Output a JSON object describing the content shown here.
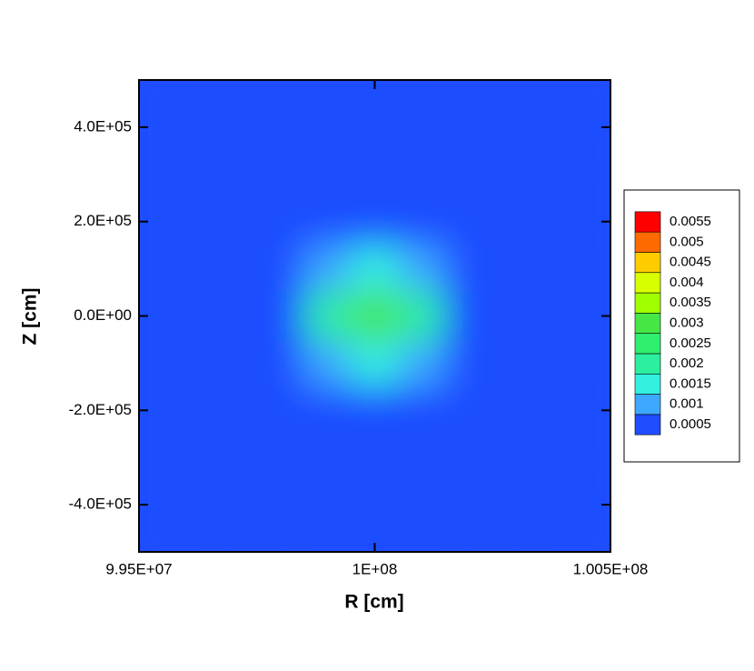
{
  "chart_data": {
    "type": "contour",
    "x_label": "R [cm]",
    "y_label": "Z [cm]",
    "xlim": [
      99500000,
      100500000
    ],
    "ylim": [
      -500000,
      500000
    ],
    "xticks": [
      {
        "value": 99500000,
        "label": "9.95E+07"
      },
      {
        "value": 100000000,
        "label": "1E+08"
      },
      {
        "value": 100500000,
        "label": "1.005E+08"
      }
    ],
    "yticks": [
      {
        "value": -400000,
        "label": "-4.0E+05"
      },
      {
        "value": -200000,
        "label": "-2.0E+05"
      },
      {
        "value": 0,
        "label": "0.0E+00"
      },
      {
        "value": 200000,
        "label": "2.0E+05"
      },
      {
        "value": 400000,
        "label": "4.0E+05"
      }
    ],
    "x": [
      99500000,
      99600000,
      99700000,
      99800000,
      99900000,
      100000000,
      100100000,
      100200000,
      100300000,
      100400000,
      100500000
    ],
    "y": [
      -500000,
      -400000,
      -300000,
      -200000,
      -100000,
      0,
      100000,
      200000,
      300000,
      400000,
      500000
    ],
    "z": [
      [
        0.0002,
        0.0002,
        0.0002,
        0.0002,
        0.0002,
        0.0002,
        0.0002,
        0.0002,
        0.0002,
        0.0002,
        0.0002
      ],
      [
        0.0002,
        0.0002,
        0.0002,
        0.0002,
        0.0002,
        0.0002,
        0.0002,
        0.0002,
        0.0002,
        0.0002,
        0.0002
      ],
      [
        0.0002,
        0.0002,
        0.0002,
        0.0002,
        0.0002,
        0.0002,
        0.0002,
        0.0002,
        0.0002,
        0.0002,
        0.0002
      ],
      [
        0.0002,
        0.0002,
        0.0002,
        0.0002,
        0.0004,
        0.0005,
        0.0004,
        0.0002,
        0.0002,
        0.0002,
        0.0002
      ],
      [
        0.0002,
        0.0002,
        0.0002,
        0.0005,
        0.0013,
        0.0018,
        0.0013,
        0.0005,
        0.0002,
        0.0002,
        0.0002
      ],
      [
        0.0002,
        0.0002,
        0.0003,
        0.0008,
        0.0022,
        0.0032,
        0.0022,
        0.0008,
        0.0003,
        0.0002,
        0.0002
      ],
      [
        0.0002,
        0.0002,
        0.0002,
        0.0005,
        0.0013,
        0.0018,
        0.0013,
        0.0005,
        0.0002,
        0.0002,
        0.0002
      ],
      [
        0.0002,
        0.0002,
        0.0002,
        0.0002,
        0.0004,
        0.0005,
        0.0004,
        0.0002,
        0.0002,
        0.0002,
        0.0002
      ],
      [
        0.0002,
        0.0002,
        0.0002,
        0.0002,
        0.0002,
        0.0002,
        0.0002,
        0.0002,
        0.0002,
        0.0002,
        0.0002
      ],
      [
        0.0002,
        0.0002,
        0.0002,
        0.0002,
        0.0002,
        0.0002,
        0.0002,
        0.0002,
        0.0002,
        0.0002,
        0.0002
      ],
      [
        0.0002,
        0.0002,
        0.0002,
        0.0002,
        0.0002,
        0.0002,
        0.0002,
        0.0002,
        0.0002,
        0.0002,
        0.0002
      ]
    ],
    "colorbar": {
      "levels": [
        0.0005,
        0.001,
        0.0015,
        0.002,
        0.0025,
        0.003,
        0.0035,
        0.004,
        0.0045,
        0.005,
        0.0055
      ],
      "colors": [
        "#1f4dff",
        "#3da8ff",
        "#33f0e0",
        "#2cf0a0",
        "#30ee70",
        "#46e646",
        "#a0ff00",
        "#d8ff00",
        "#ffcc00",
        "#ff6a00",
        "#ff0000"
      ]
    }
  }
}
